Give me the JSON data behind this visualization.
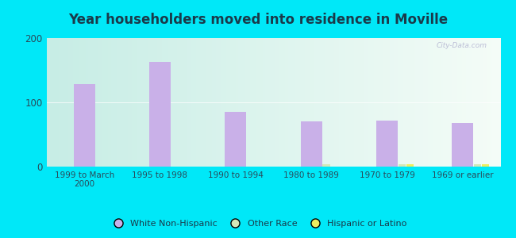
{
  "title": "Year householders moved into residence in Moville",
  "categories": [
    "1999 to March\n2000",
    "1995 to 1998",
    "1990 to 1994",
    "1980 to 1989",
    "1970 to 1979",
    "1969 or earlier"
  ],
  "white_non_hispanic": [
    128,
    163,
    85,
    70,
    72,
    68
  ],
  "other_race": [
    0,
    0,
    0,
    4,
    4,
    4
  ],
  "hispanic_or_latino": [
    0,
    0,
    0,
    0,
    4,
    4
  ],
  "bar_color_white": "#c9b0e8",
  "bar_color_other": "#d4e8b8",
  "bar_color_hispanic": "#eeee60",
  "ylim": [
    0,
    200
  ],
  "yticks": [
    0,
    100,
    200
  ],
  "bg_outer": "#00e8f8",
  "title_color": "#1a3a4a",
  "title_fontsize": 12,
  "label_fontsize": 7.5,
  "watermark": "City-Data.com"
}
